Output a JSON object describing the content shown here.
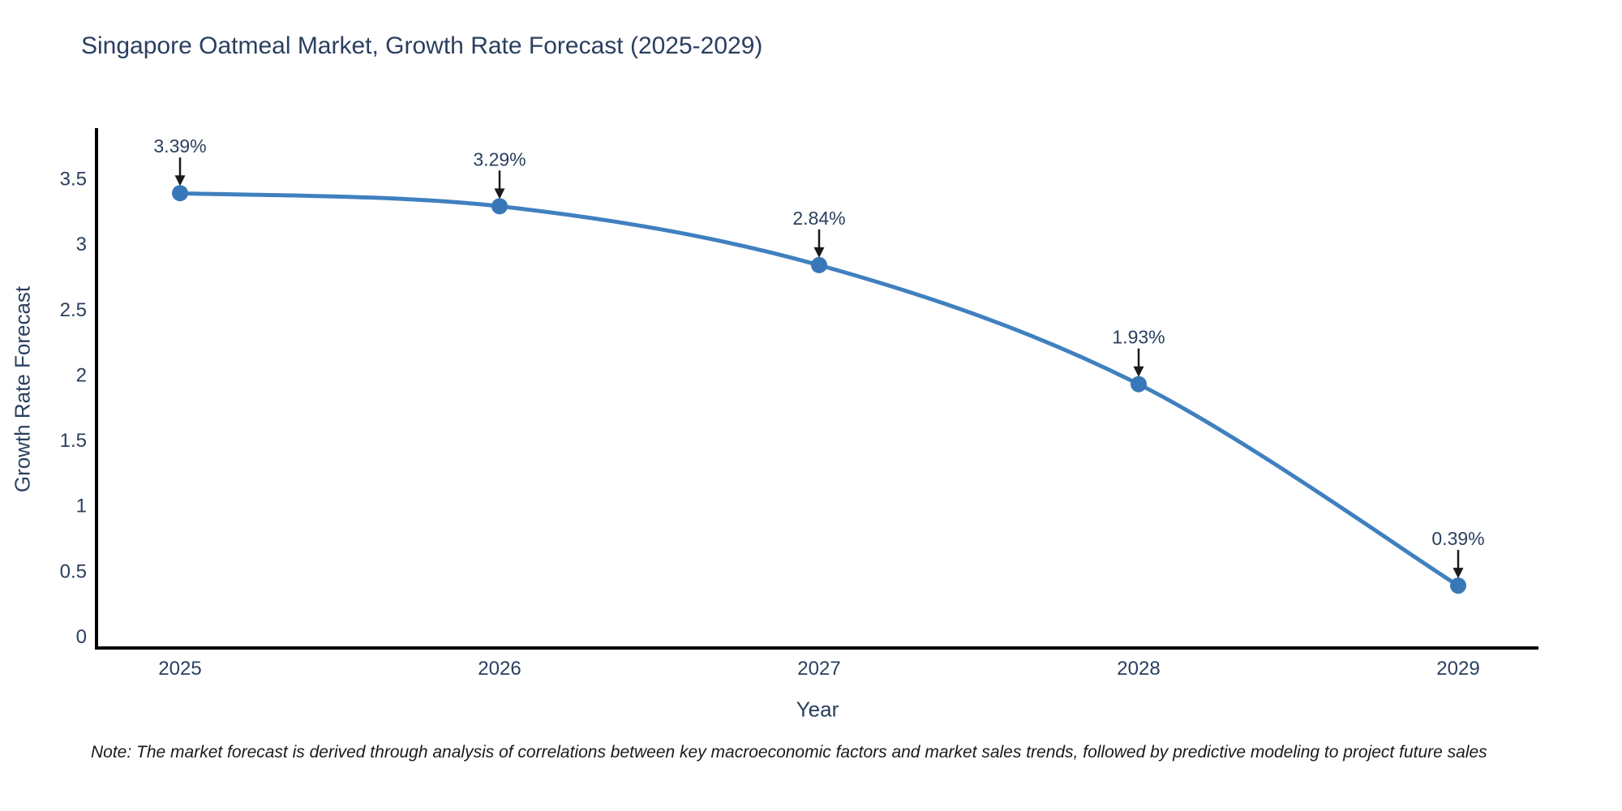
{
  "chart_data": {
    "type": "line",
    "title": "Singapore Oatmeal Market, Growth Rate Forecast (2025-2029)",
    "xlabel": "Year",
    "ylabel": "Growth Rate Forecast",
    "x": [
      2025,
      2026,
      2027,
      2028,
      2029
    ],
    "values": [
      3.39,
      3.29,
      2.84,
      1.93,
      0.39
    ],
    "point_labels": [
      "3.39%",
      "3.29%",
      "2.84%",
      "1.93%",
      "0.39%"
    ],
    "xtick_labels": [
      "2025",
      "2026",
      "2027",
      "2028",
      "2029"
    ],
    "ytick_values": [
      0,
      0.5,
      1,
      1.5,
      2,
      2.5,
      3,
      3.5
    ],
    "ytick_labels": [
      "0",
      "0.5",
      "1",
      "1.5",
      "2",
      "2.5",
      "3",
      "3.5"
    ],
    "xlim": [
      2024.74,
      2029.25
    ],
    "ylim": [
      -0.1,
      3.88
    ],
    "grid": false,
    "legend": "none",
    "line_shape": "spline",
    "colors": {
      "line": "#4080bf",
      "marker": "#3878b8",
      "axis": "#000000",
      "text": "#2a3f5f",
      "arrow": "#1a1a1a",
      "background": "#ffffff"
    },
    "note": "Note: The market forecast is derived through analysis of correlations between key macroeconomic factors and market sales trends, followed by predictive modeling to project future sales"
  }
}
